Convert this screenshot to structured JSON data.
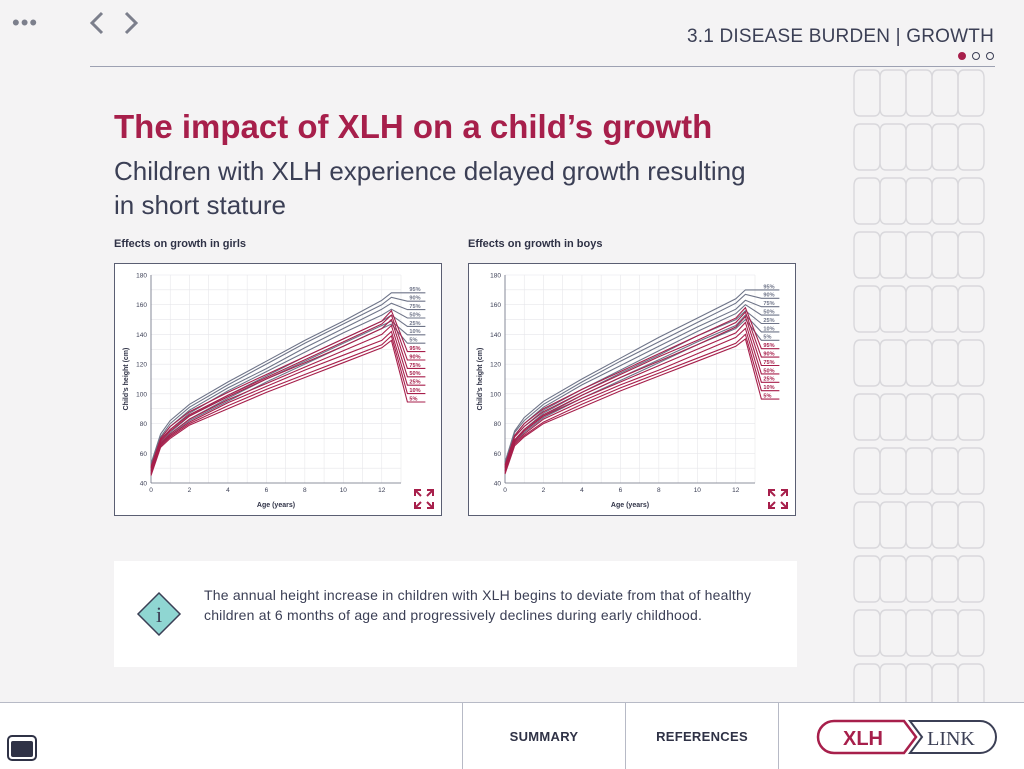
{
  "header": {
    "menu_icon": "more-dots-icon",
    "back_icon": "chevron-left-icon",
    "forward_icon": "chevron-right-icon",
    "section_title": "3.1 DISEASE BURDEN | GROWTH",
    "pager": {
      "current": 1,
      "total": 3
    }
  },
  "main": {
    "title": "The impact of XLH on a child’s growth",
    "subtitle": "Children with XLH experience delayed growth resulting in short stature"
  },
  "colors": {
    "accent": "#a71f4b",
    "navy": "#3b3f55",
    "healthy_curve": "#6e7488",
    "info_teal": "#8fd6d2"
  },
  "charts": {
    "girls": {
      "label": "Effects on growth in girls",
      "expand_icon": "expand-arrows-icon"
    },
    "boys": {
      "label": "Effects on growth in boys",
      "expand_icon": "expand-arrows-icon"
    }
  },
  "chart_data": [
    {
      "type": "line",
      "title": "Effects on growth in girls",
      "xlabel": "Age (years)",
      "ylabel": "Child’s height (cm)",
      "xlim": [
        0,
        13
      ],
      "ylim": [
        40,
        180
      ],
      "xticks": [
        0,
        2,
        4,
        6,
        8,
        10,
        12
      ],
      "yticks": [
        40,
        60,
        80,
        100,
        120,
        140,
        160,
        180
      ],
      "grid": true,
      "x": [
        0,
        0.5,
        1,
        2,
        4,
        6,
        8,
        10,
        12,
        12.5
      ],
      "series": [
        {
          "name": "95%",
          "group": "healthy",
          "values": [
            53,
            73,
            82,
            93,
            108,
            122,
            136,
            149,
            163,
            168
          ]
        },
        {
          "name": "90%",
          "group": "healthy",
          "values": [
            52,
            71,
            80,
            91,
            106,
            120,
            134,
            147,
            160,
            165
          ]
        },
        {
          "name": "75%",
          "group": "healthy",
          "values": [
            50,
            70,
            78,
            89,
            104,
            117,
            131,
            144,
            157,
            161
          ]
        },
        {
          "name": "50%",
          "group": "healthy",
          "values": [
            49,
            69,
            76,
            87,
            102,
            115,
            128,
            141,
            153,
            157
          ]
        },
        {
          "name": "25%",
          "group": "healthy",
          "values": [
            48,
            67,
            74,
            85,
            99,
            112,
            125,
            137,
            149,
            153
          ]
        },
        {
          "name": "10%",
          "group": "healthy",
          "values": [
            47,
            66,
            73,
            83,
            97,
            110,
            122,
            134,
            146,
            149
          ]
        },
        {
          "name": "5%",
          "group": "healthy",
          "values": [
            46,
            65,
            72,
            82,
            95,
            108,
            120,
            132,
            144,
            147
          ]
        },
        {
          "name": "95%",
          "group": "XLH",
          "values": [
            51,
            70,
            78,
            88,
            101,
            113,
            125,
            137,
            149,
            156
          ]
        },
        {
          "name": "90%",
          "group": "XLH",
          "values": [
            50,
            69,
            76,
            86,
            99,
            111,
            123,
            135,
            147,
            153
          ]
        },
        {
          "name": "75%",
          "group": "XLH",
          "values": [
            49,
            68,
            75,
            85,
            98,
            110,
            121,
            132,
            144,
            150
          ]
        },
        {
          "name": "50%",
          "group": "XLH",
          "values": [
            48,
            67,
            73,
            83,
            96,
            107,
            118,
            129,
            140,
            146
          ]
        },
        {
          "name": "25%",
          "group": "XLH",
          "values": [
            47,
            66,
            72,
            81,
            94,
            105,
            116,
            126,
            136,
            142
          ]
        },
        {
          "name": "10%",
          "group": "XLH",
          "values": [
            46,
            65,
            71,
            80,
            92,
            103,
            113,
            123,
            133,
            139
          ]
        },
        {
          "name": "5%",
          "group": "XLH",
          "values": [
            45,
            64,
            70,
            79,
            90,
            101,
            111,
            121,
            131,
            136
          ]
        }
      ]
    },
    {
      "type": "line",
      "title": "Effects on growth in boys",
      "xlabel": "Age (years)",
      "ylabel": "Child’s height (cm)",
      "xlim": [
        0,
        13
      ],
      "ylim": [
        40,
        180
      ],
      "xticks": [
        0,
        2,
        4,
        6,
        8,
        10,
        12
      ],
      "yticks": [
        40,
        60,
        80,
        100,
        120,
        140,
        160,
        180
      ],
      "grid": true,
      "x": [
        0,
        0.5,
        1,
        2,
        4,
        6,
        8,
        10,
        12,
        12.5
      ],
      "series": [
        {
          "name": "95%",
          "group": "healthy",
          "values": [
            54,
            75,
            84,
            95,
            110,
            124,
            138,
            151,
            164,
            170
          ]
        },
        {
          "name": "90%",
          "group": "healthy",
          "values": [
            53,
            74,
            82,
            93,
            108,
            122,
            135,
            148,
            161,
            167
          ]
        },
        {
          "name": "75%",
          "group": "healthy",
          "values": [
            52,
            72,
            80,
            91,
            106,
            119,
            132,
            145,
            157,
            163
          ]
        },
        {
          "name": "50%",
          "group": "healthy",
          "values": [
            51,
            71,
            78,
            89,
            103,
            116,
            129,
            142,
            154,
            160
          ]
        },
        {
          "name": "25%",
          "group": "healthy",
          "values": [
            50,
            69,
            76,
            87,
            101,
            114,
            126,
            139,
            150,
            156
          ]
        },
        {
          "name": "10%",
          "group": "healthy",
          "values": [
            49,
            68,
            75,
            85,
            99,
            111,
            123,
            135,
            146,
            153
          ]
        },
        {
          "name": "5%",
          "group": "healthy",
          "values": [
            48,
            67,
            74,
            84,
            97,
            109,
            121,
            133,
            144,
            150
          ]
        },
        {
          "name": "95%",
          "group": "XLH",
          "values": [
            52,
            72,
            80,
            90,
            103,
            115,
            127,
            139,
            151,
            158
          ]
        },
        {
          "name": "90%",
          "group": "XLH",
          "values": [
            51,
            71,
            78,
            88,
            101,
            113,
            125,
            136,
            148,
            155
          ]
        },
        {
          "name": "75%",
          "group": "XLH",
          "values": [
            50,
            69,
            76,
            86,
            99,
            111,
            122,
            133,
            145,
            152
          ]
        },
        {
          "name": "50%",
          "group": "XLH",
          "values": [
            49,
            68,
            75,
            85,
            97,
            108,
            119,
            130,
            141,
            148
          ]
        },
        {
          "name": "25%",
          "group": "XLH",
          "values": [
            48,
            67,
            73,
            83,
            95,
            106,
            116,
            127,
            138,
            144
          ]
        },
        {
          "name": "10%",
          "group": "XLH",
          "values": [
            47,
            66,
            72,
            81,
            93,
            104,
            114,
            124,
            134,
            140
          ]
        },
        {
          "name": "5%",
          "group": "XLH",
          "values": [
            46,
            65,
            71,
            80,
            91,
            102,
            112,
            122,
            132,
            137
          ]
        }
      ]
    }
  ],
  "info": {
    "icon": "info-icon",
    "icon_glyph": "i",
    "text": "The annual height increase in children with XLH begins to deviate from that of healthy children at 6 months of age and progressively declines during early childhood."
  },
  "footer": {
    "home_icon": "home-screen-icon",
    "summary_label": "SUMMARY",
    "references_label": "REFERENCES",
    "logo_left": "XLH",
    "logo_right": "LINK"
  }
}
